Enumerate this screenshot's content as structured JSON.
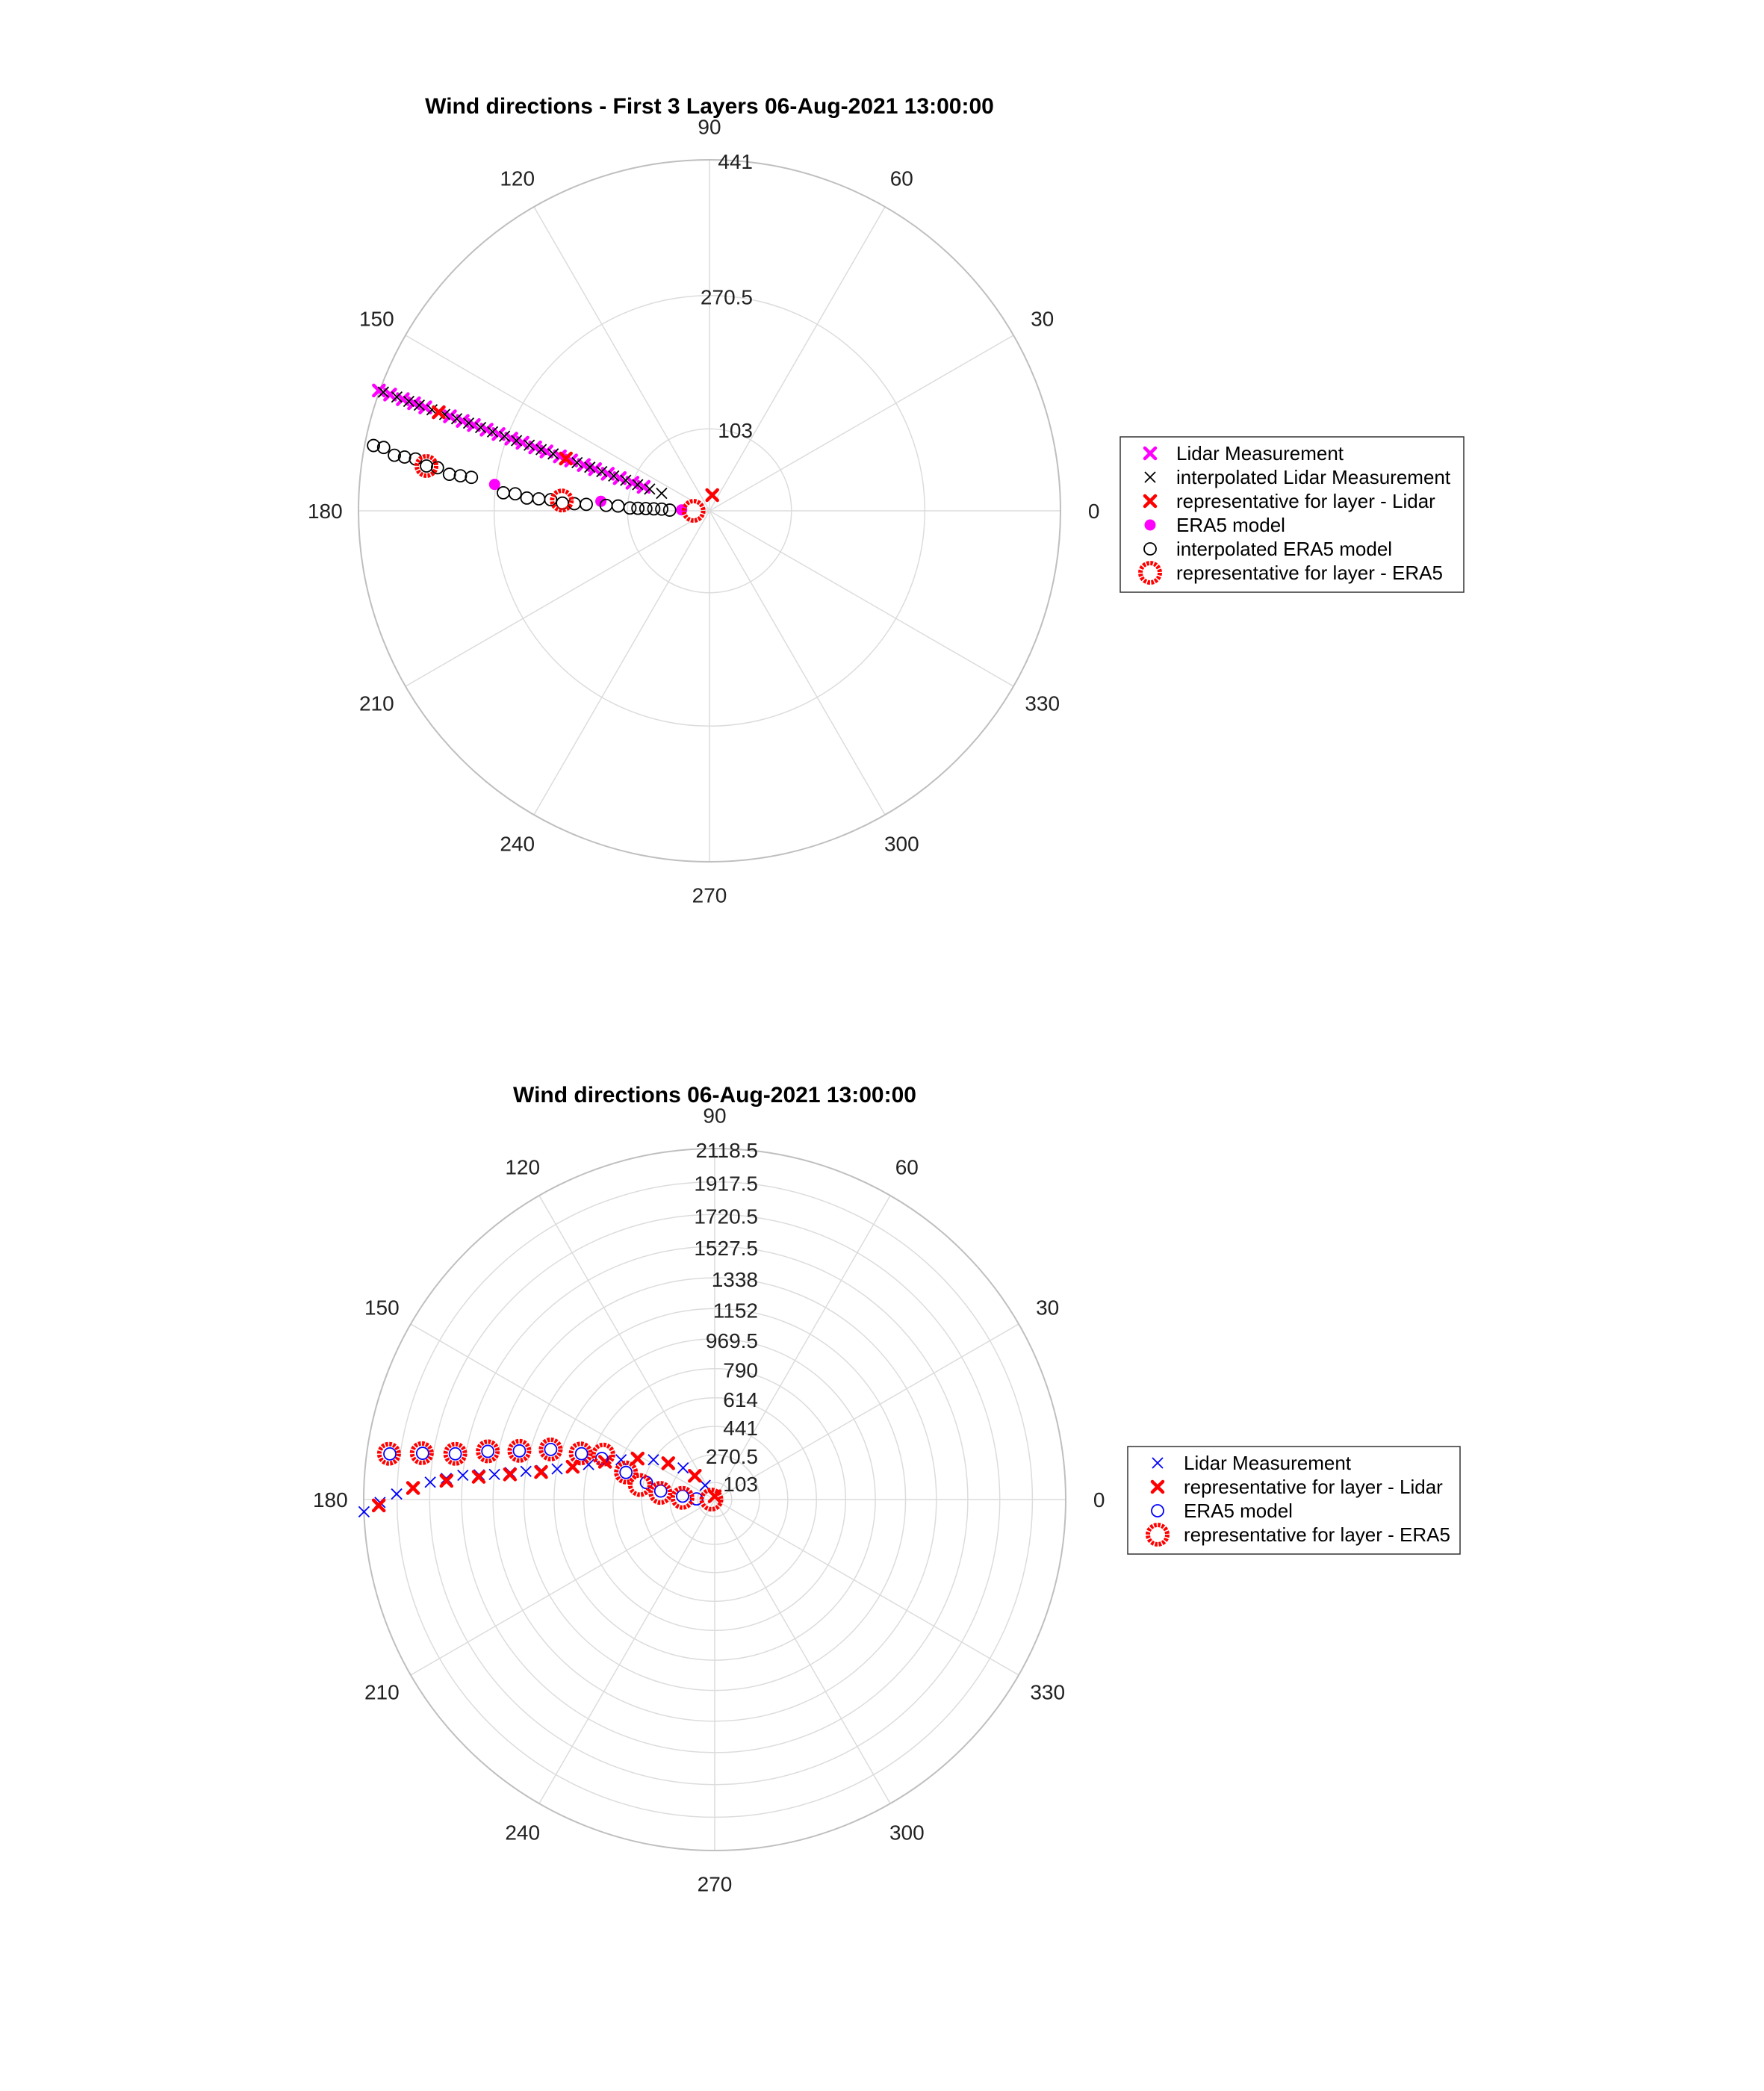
{
  "chart_data": [
    {
      "type": "scatter",
      "polar": true,
      "title": "Wind directions - First 3 Layers 06-Aug-2021 13:00:00",
      "theta_ticks": [
        "0",
        "30",
        "60",
        "90",
        "120",
        "150",
        "180",
        "210",
        "240",
        "270",
        "300",
        "330"
      ],
      "r_ticks": [
        "103",
        "270.5",
        "441"
      ],
      "r_tick_values": [
        103,
        270.5,
        441
      ],
      "rlim": [
        0,
        441
      ],
      "legend_position": "right",
      "legend": [
        "Lidar Measurement",
        "interpolated Lidar Measurement",
        "representative for layer - Lidar",
        "ERA5 model",
        "interpolated ERA5 model",
        "representative for layer - ERA5"
      ],
      "colors": {
        "magenta": "#ff00ff",
        "red": "#ff0000",
        "black": "#000000",
        "grid": "#dcdcdc"
      },
      "series": [
        {
          "name": "Lidar Measurement",
          "marker": "x-bold",
          "color": "#ff00ff",
          "points": [
            [
              160,
              442
            ],
            [
              160,
              427
            ],
            [
              160,
              410
            ],
            [
              160,
              395
            ],
            [
              160,
              380
            ],
            [
              160,
              362
            ],
            [
              160,
              347
            ],
            [
              160,
              330
            ],
            [
              160,
              315
            ],
            [
              160,
              298
            ],
            [
              160,
              282
            ],
            [
              160,
              265
            ],
            [
              160,
              250
            ],
            [
              160,
              233
            ],
            [
              160,
              218
            ],
            [
              160,
              200
            ],
            [
              160,
              185
            ],
            [
              160,
              168
            ],
            [
              160,
              153
            ],
            [
              160,
              136
            ],
            [
              160,
              120
            ],
            [
              160,
              103
            ],
            [
              160,
              88
            ]
          ]
        },
        {
          "name": "interpolated Lidar Measurement",
          "marker": "x",
          "color": "#000000",
          "points": [
            [
              160,
              436
            ],
            [
              160,
              418
            ],
            [
              160,
              402
            ],
            [
              160,
              388
            ],
            [
              160,
              371
            ],
            [
              160,
              354
            ],
            [
              160,
              338
            ],
            [
              160,
              322
            ],
            [
              160,
              306
            ],
            [
              160,
              290
            ],
            [
              160,
              274
            ],
            [
              160,
              258
            ],
            [
              160,
              241
            ],
            [
              160,
              225
            ],
            [
              160,
              209
            ],
            [
              160,
              193
            ],
            [
              160,
              177
            ],
            [
              160,
              160
            ],
            [
              160,
              144
            ],
            [
              160,
              128
            ],
            [
              160,
              112
            ],
            [
              160,
              96
            ],
            [
              160,
              80
            ],
            [
              160,
              64
            ]
          ]
        },
        {
          "name": "representative for layer - Lidar",
          "marker": "x-bold",
          "color": "#ff0000",
          "points": [
            [
              160,
              362
            ],
            [
              160,
              192
            ],
            [
              80,
              20
            ]
          ]
        },
        {
          "name": "ERA5 model",
          "marker": "dot",
          "color": "#ff00ff",
          "points": [
            [
              173,
              272
            ],
            [
              175,
              137
            ],
            [
              178,
              35
            ]
          ]
        },
        {
          "name": "interpolated ERA5 model",
          "marker": "circle",
          "color": "#000000",
          "points": [
            [
              169,
              430
            ],
            [
              169,
              417
            ],
            [
              170,
              402
            ],
            [
              170,
              389
            ],
            [
              170,
              375
            ],
            [
              171,
              360
            ],
            [
              171,
              346
            ],
            [
              172,
              330
            ],
            [
              172,
              316
            ],
            [
              172,
              302
            ],
            [
              175,
              260
            ],
            [
              175,
              245
            ],
            [
              176,
              230
            ],
            [
              176,
              215
            ],
            [
              176,
              200
            ],
            [
              177,
              185
            ],
            [
              177,
              170
            ],
            [
              177,
              155
            ],
            [
              177,
              130
            ],
            [
              177,
              115
            ],
            [
              178,
              100
            ],
            [
              178,
              90
            ],
            [
              178,
              80
            ],
            [
              178,
              70
            ],
            [
              178,
              60
            ],
            [
              179,
              50
            ]
          ]
        },
        {
          "name": "representative for layer - ERA5",
          "marker": "circle-red",
          "color": "#ff0000",
          "points": [
            [
              171,
              360
            ],
            [
              176,
              186
            ],
            [
              180,
              20
            ]
          ]
        }
      ]
    },
    {
      "type": "scatter",
      "polar": true,
      "title": "Wind directions 06-Aug-2021 13:00:00",
      "theta_ticks": [
        "0",
        "30",
        "60",
        "90",
        "120",
        "150",
        "180",
        "210",
        "240",
        "270",
        "300",
        "330"
      ],
      "r_ticks": [
        "103",
        "270.5",
        "441",
        "614",
        "790",
        "969.5",
        "1152",
        "1338",
        "1527.5",
        "1720.5",
        "1917.5",
        "2118.5"
      ],
      "r_tick_values": [
        103,
        270.5,
        441,
        614,
        790,
        969.5,
        1152,
        1338,
        1527.5,
        1720.5,
        1917.5,
        2118.5
      ],
      "rlim": [
        0,
        2118.5
      ],
      "legend_position": "right",
      "legend": [
        "Lidar Measurement",
        "representative for layer - Lidar",
        "ERA5 model",
        "representative for layer - ERA5"
      ],
      "colors": {
        "blue": "#0000ff",
        "red": "#ff0000",
        "grid": "#dcdcdc"
      },
      "series": [
        {
          "name": "Lidar Measurement",
          "marker": "x",
          "color": "#0000ff",
          "points": [
            [
              182,
              2118
            ],
            [
              180.5,
              2020
            ],
            [
              179,
              1920
            ],
            [
              177.8,
              1820
            ],
            [
              176.5,
              1720
            ],
            [
              175.5,
              1625
            ],
            [
              174.5,
              1527
            ],
            [
              174,
              1430
            ],
            [
              173.5,
              1338
            ],
            [
              172.5,
              1245
            ],
            [
              171.5,
              1152
            ],
            [
              170.5,
              1060
            ],
            [
              169,
              969
            ],
            [
              167,
              880
            ],
            [
              164.5,
              790
            ],
            [
              161,
              700
            ],
            [
              157,
              614
            ],
            [
              152,
              527
            ],
            [
              147,
              441
            ],
            [
              141,
              356
            ],
            [
              135,
              270
            ],
            [
              129,
              187
            ],
            [
              124,
              103
            ]
          ]
        },
        {
          "name": "representative for layer - Lidar",
          "marker": "x-bold",
          "color": "#ff0000",
          "points": [
            [
              181,
              2028
            ],
            [
              177.8,
              1822
            ],
            [
              176,
              1623
            ],
            [
              174.5,
              1431
            ],
            [
              173,
              1245
            ],
            [
              171,
              1061
            ],
            [
              167,
              880
            ],
            [
              161,
              700
            ],
            [
              152,
              527
            ],
            [
              142,
              356
            ],
            [
              130,
              187
            ],
            [
              90,
              20
            ]
          ]
        },
        {
          "name": "ERA5 model",
          "marker": "circle",
          "color": "#0000ff",
          "points": [
            [
              172,
              1980
            ],
            [
              171,
              1785
            ],
            [
              170,
              1590
            ],
            [
              168,
              1400
            ],
            [
              166,
              1215
            ],
            [
              163,
              1035
            ],
            [
              161,
              850
            ],
            [
              160,
              725
            ],
            [
              163,
              560
            ],
            [
              166,
              425
            ],
            [
              171,
              330
            ],
            [
              174,
              195
            ],
            [
              178,
              110
            ]
          ]
        },
        {
          "name": "representative for layer - ERA5",
          "marker": "circle-red",
          "color": "#ff0000",
          "points": [
            [
              172,
              1985
            ],
            [
              171,
              1790
            ],
            [
              170,
              1590
            ],
            [
              168,
              1400
            ],
            [
              166,
              1215
            ],
            [
              163,
              1035
            ],
            [
              161,
              855
            ],
            [
              158,
              725
            ],
            [
              163,
              560
            ],
            [
              169,
              460
            ],
            [
              173,
              330
            ],
            [
              177,
              195
            ],
            [
              180,
              20
            ]
          ]
        }
      ]
    }
  ]
}
